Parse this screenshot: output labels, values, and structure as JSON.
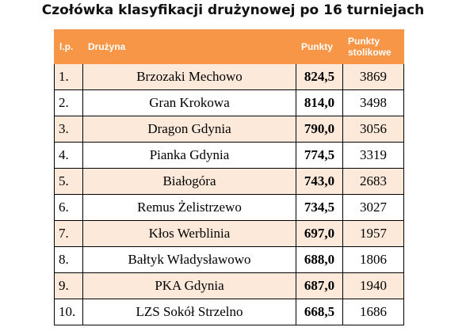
{
  "title": "Czołówka klasyfikacji drużynowej po 16 turniejach",
  "table": {
    "header": [
      "l.p.",
      "Drużyna",
      "Punkty",
      "Punkty stolikowe"
    ],
    "rows": [
      [
        "1.",
        "Brzozaki Mechowo",
        "824,5",
        "3869"
      ],
      [
        "2.",
        "Gran Krokowa",
        "814,0",
        "3498"
      ],
      [
        "3.",
        "Dragon Gdynia",
        "790,0",
        "3056"
      ],
      [
        "4.",
        "Pianka Gdynia",
        "774,5",
        "3319"
      ],
      [
        "5.",
        "Białogóra",
        "743,0",
        "2683"
      ],
      [
        "6.",
        "Remus Żelistrzewo",
        "734,5",
        "3027"
      ],
      [
        "7.",
        "Kłos Werblinia",
        "697,0",
        "1957"
      ],
      [
        "8.",
        "Bałtyk Władysławowo",
        "688,0",
        "1806"
      ],
      [
        "9.",
        "PKA Gdynia",
        "687,0",
        "1940"
      ],
      [
        "10.",
        "LZS Sokół Strzelno",
        "668,5",
        "1686"
      ]
    ]
  }
}
